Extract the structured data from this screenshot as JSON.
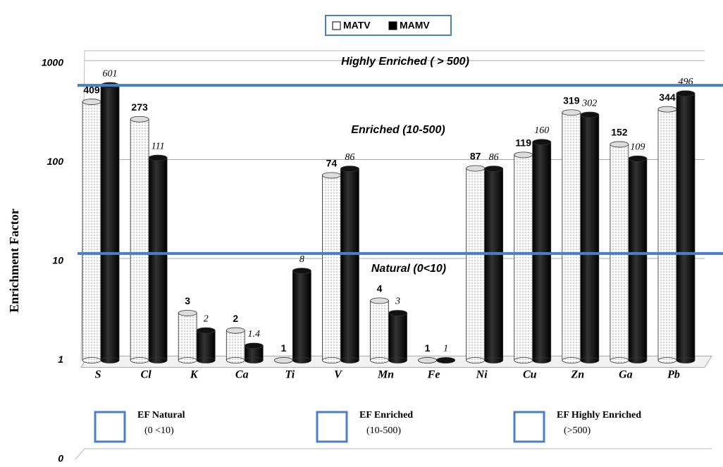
{
  "chart_data": {
    "type": "bar",
    "scale": "log",
    "ylabel": "Enrichment Factor",
    "categories": [
      "S",
      "Cl",
      "K",
      "Ca",
      "Ti",
      "V",
      "Mn",
      "Fe",
      "Ni",
      "Cu",
      "Zn",
      "Ga",
      "Pb"
    ],
    "series": [
      {
        "name": "MATV",
        "color": "#ffffff",
        "values": [
          409,
          273,
          3,
          2,
          1,
          74,
          4,
          1,
          87,
          119,
          319,
          152,
          344
        ]
      },
      {
        "name": "MAMV",
        "color": "#000000",
        "values": [
          601,
          111,
          2,
          1.4,
          8,
          86,
          3,
          1,
          86,
          160,
          302,
          109,
          496
        ]
      }
    ],
    "ylim": [
      0.1,
      1000
    ],
    "yticks": [
      {
        "value": 0.1,
        "label": "0"
      },
      1,
      10,
      100,
      1000
    ],
    "baseline": 1,
    "grid": true,
    "legend": "top",
    "reference_lines": [
      {
        "value": 600,
        "color": "#4a7fc8"
      },
      {
        "value": 12,
        "color": "#4a7fc8"
      }
    ],
    "annotations": [
      "Highly Enriched ( > 500)",
      "Enriched (10-500)",
      "Natural (0<10)"
    ],
    "ef_classes": [
      {
        "name": "EF Natural",
        "range": "(0 <10)"
      },
      {
        "name": "EF Enriched",
        "range": "(10-500)"
      },
      {
        "name": "EF  Highly Enriched",
        "range": "(>500)"
      }
    ],
    "ef_color": "#4a7fc8"
  }
}
